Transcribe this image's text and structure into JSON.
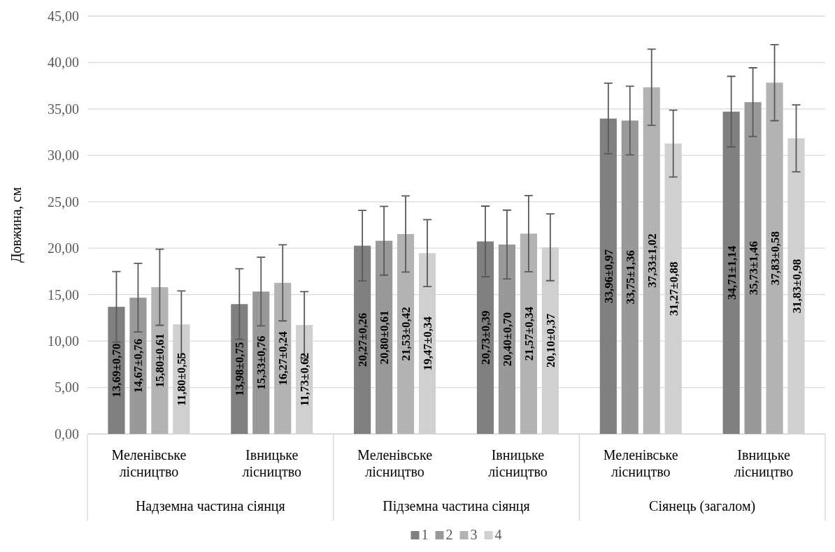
{
  "chart_data": {
    "type": "bar",
    "ylabel": "Довжина, см",
    "categories": [
      "Меленівське лісництво",
      "Івницьке лісництво",
      "Меленівське лісництво",
      "Івницьке лісництво",
      "Меленівське лісництво",
      "Івницьке лісництво"
    ],
    "annotations": [
      "Надземна частина сіянця",
      "Підземна частина сіянця",
      "Сіянець (загалом)"
    ],
    "series": [
      {
        "name": "1",
        "color": "#808080",
        "values": [
          13.69,
          13.98,
          20.27,
          20.73,
          33.96,
          34.71
        ],
        "errors": [
          3.8,
          3.8,
          3.8,
          3.8,
          3.8,
          3.8
        ],
        "value_labels": [
          "13,69±0,70",
          "13,98±0,75",
          "20,27±0,26",
          "20,73±0,39",
          "33,96±0,97",
          "34,71±1,14"
        ]
      },
      {
        "name": "2",
        "color": "#999999",
        "values": [
          14.67,
          15.33,
          20.8,
          20.4,
          33.75,
          35.73
        ],
        "errors": [
          3.7,
          3.7,
          3.7,
          3.7,
          3.7,
          3.7
        ],
        "value_labels": [
          "14,67±0,76",
          "15,33±0,76",
          "20,80±0,61",
          "20,40±0,70",
          "33,75±1,36",
          "35,73±1,46"
        ]
      },
      {
        "name": "3",
        "color": "#b3b3b3",
        "values": [
          15.8,
          16.27,
          21.53,
          21.57,
          37.33,
          37.83
        ],
        "errors": [
          4.1,
          4.1,
          4.1,
          4.1,
          4.1,
          4.1
        ],
        "value_labels": [
          "15,80±0,61",
          "16,27±0,24",
          "21,53±0,42",
          "21,57±0,34",
          "37,33±1,02",
          "37,83±0,58"
        ]
      },
      {
        "name": "4",
        "color": "#d0d0d0",
        "values": [
          11.8,
          11.73,
          19.47,
          20.1,
          31.27,
          31.83
        ],
        "errors": [
          3.6,
          3.6,
          3.6,
          3.6,
          3.6,
          3.6
        ],
        "value_labels": [
          "11,80±0,55",
          "11,73±0,62",
          "19,47±0,34",
          "20,10±0,37",
          "31,27±0,88",
          "31,83±0,98"
        ]
      }
    ],
    "ylim": [
      0,
      45
    ],
    "yticks": [
      {
        "value": 0,
        "label": "0,00"
      },
      {
        "value": 5,
        "label": "5,00"
      },
      {
        "value": 10,
        "label": "10,00"
      },
      {
        "value": 15,
        "label": "15,00"
      },
      {
        "value": 20,
        "label": "20,00"
      },
      {
        "value": 25,
        "label": "25,00"
      },
      {
        "value": 30,
        "label": "30,00"
      },
      {
        "value": 35,
        "label": "35,00"
      },
      {
        "value": 40,
        "label": "40,00"
      },
      {
        "value": 45,
        "label": "45,00"
      }
    ],
    "grid": "y",
    "legend": "bottom"
  }
}
